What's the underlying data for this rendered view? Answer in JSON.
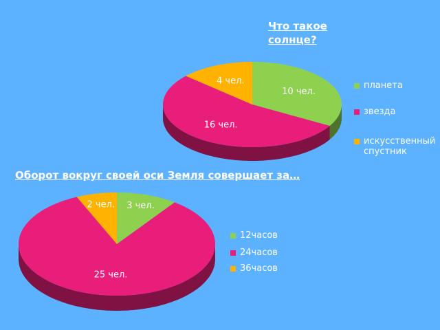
{
  "chart_data": [
    {
      "type": "pie",
      "title": "Что такое солнце?",
      "categories": [
        "планета",
        "звезда",
        "искусственный спустник"
      ],
      "values": [
        10,
        16,
        4
      ],
      "value_labels": [
        "10 чел.",
        "16 чел.",
        "4 чел."
      ],
      "colors": [
        "#8ed14f",
        "#e91e7a",
        "#ffb300"
      ]
    },
    {
      "type": "pie",
      "title": "Оборот вокруг своей оси Земля совершает за…",
      "categories": [
        "12часов",
        "24часов",
        "36часов"
      ],
      "values": [
        3,
        25,
        2
      ],
      "value_labels": [
        "3 чел.",
        "25 чел.",
        "2 чел."
      ],
      "colors": [
        "#8ed14f",
        "#e91e7a",
        "#ffb300"
      ]
    }
  ]
}
